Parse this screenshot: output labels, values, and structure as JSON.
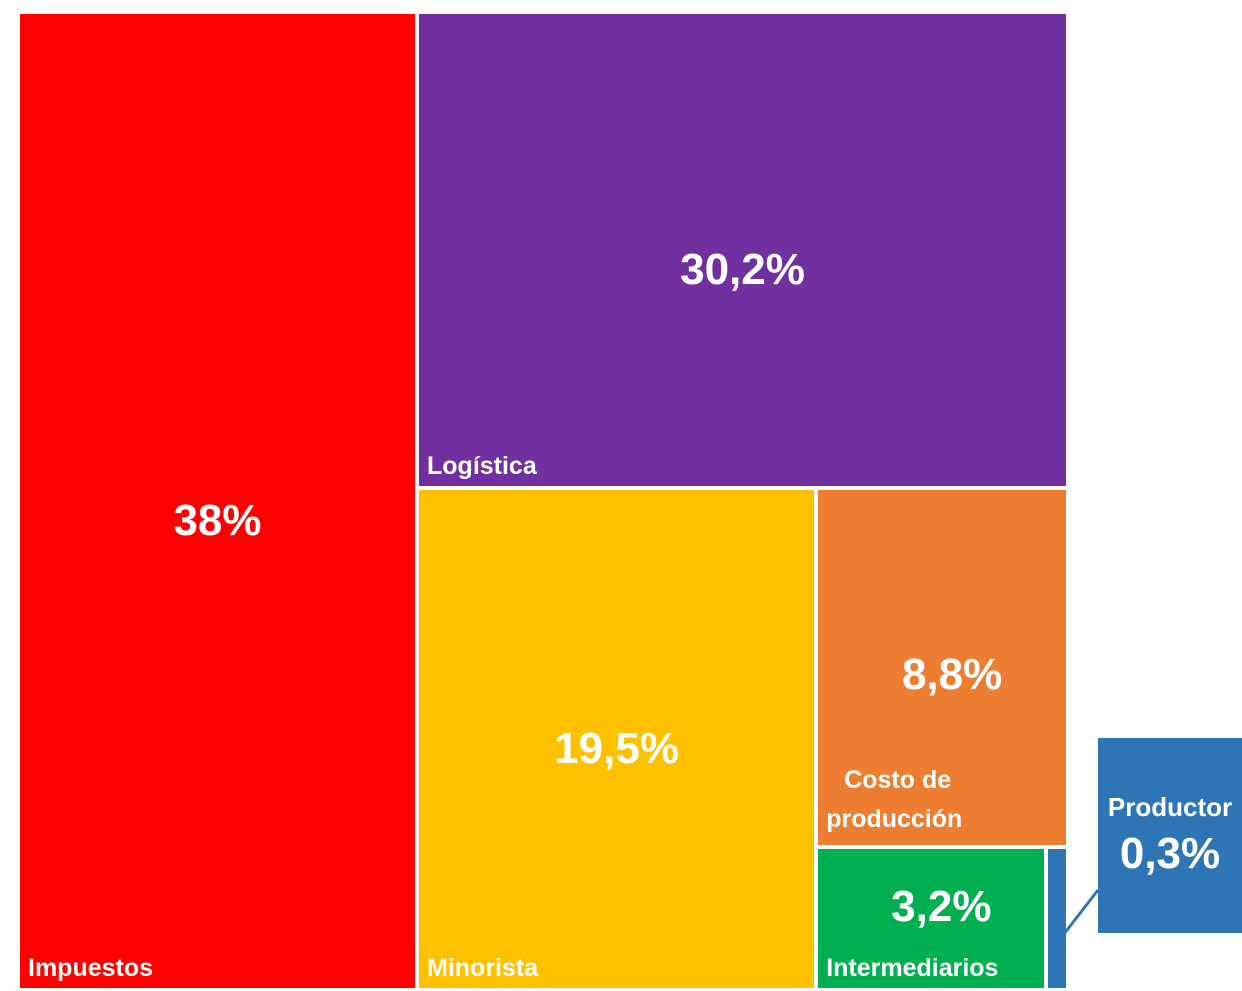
{
  "chart_data": {
    "type": "treemap",
    "categories": [
      "Impuestos",
      "Logística",
      "Minorista",
      "Costo de producción",
      "Intermediarios",
      "Productor"
    ],
    "values": [
      38,
      30.2,
      19.5,
      8.8,
      3.2,
      0.3
    ],
    "value_labels": [
      "38%",
      "30,2%",
      "19,5%",
      "8,8%",
      "3,2%",
      "0,3%"
    ],
    "colors": [
      "#ff0000",
      "#7030a0",
      "#ffc000",
      "#ed7d31",
      "#00b050",
      "#2e75b6"
    ]
  }
}
